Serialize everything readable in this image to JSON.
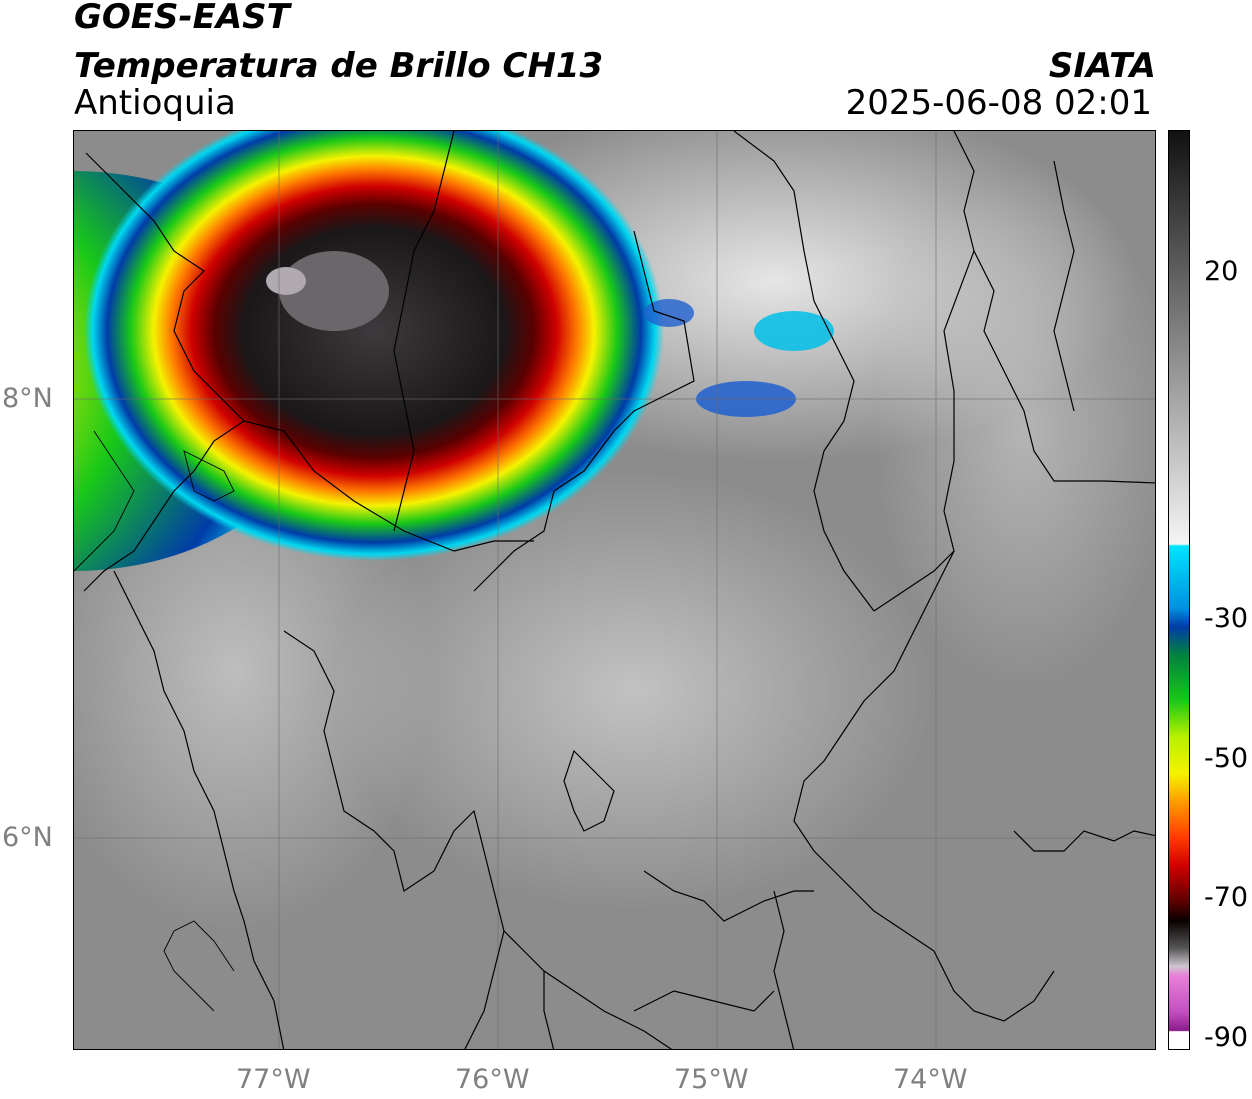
{
  "header": {
    "satellite": "GOES-EAST",
    "product": "Temperatura de Brillo CH13",
    "region": "Antioquia",
    "agency": "SIATA",
    "datetime": "2025-06-08 02:01"
  },
  "map": {
    "lat_labels": [
      "8°N",
      "6°N"
    ],
    "lon_labels": [
      "77°W",
      "76°W",
      "75°W",
      "74°W"
    ],
    "colors": {
      "background": "#8c8c8c",
      "warm_cloud": "#e6e6e6",
      "coldest_core": "#4a474a",
      "border_lines": "#000000"
    }
  },
  "colorbar": {
    "ticks": [
      "20",
      "-30",
      "-50",
      "-70",
      "-90"
    ],
    "colors": {
      "magenta": "#d65fc9",
      "dark_violet": "#8b1a8b",
      "cyan": "#00d8f0",
      "blue": "#003ca8",
      "green": "#18c818",
      "yellow": "#f5f200",
      "orange": "#ff7a00",
      "red": "#e80000",
      "dark_red": "#5a0000"
    }
  }
}
